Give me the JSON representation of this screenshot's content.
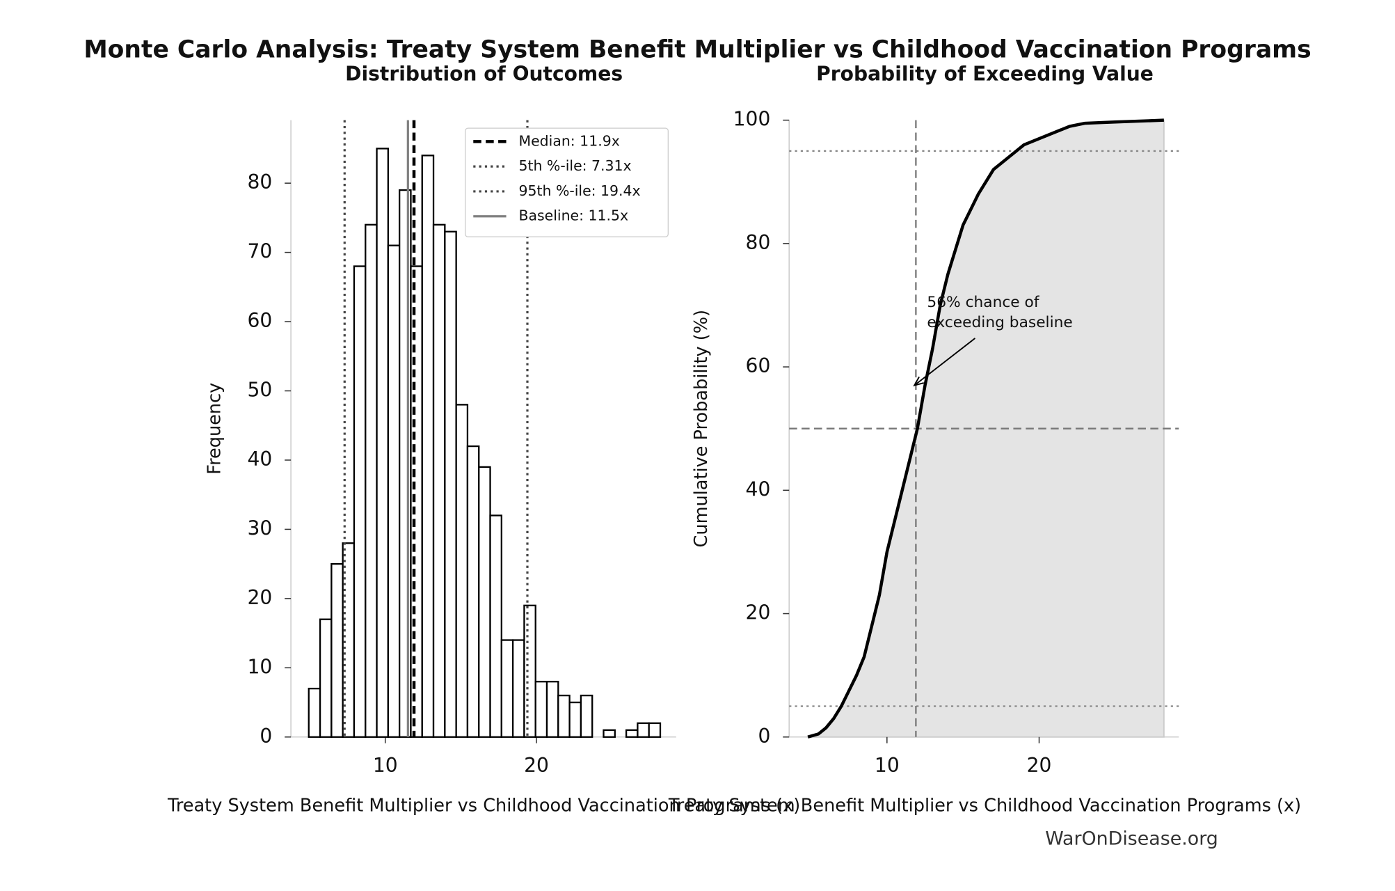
{
  "title": "Monte Carlo Analysis: Treaty System Benefit Multiplier vs Childhood Vaccination Programs",
  "watermark": "WarOnDisease.org",
  "chart_data": [
    {
      "type": "histogram",
      "title": "Distribution of Outcomes",
      "x_label": "Treaty System Benefit Multiplier vs Childhood Vaccination Programs (x)",
      "y_label": "Frequency",
      "bins": [
        4.94,
        5.69,
        6.44,
        7.19,
        7.94,
        8.69,
        9.44,
        10.19,
        10.94,
        11.69,
        12.44,
        13.19,
        13.94,
        14.69,
        15.44,
        16.19,
        16.94,
        17.69,
        18.44,
        19.19,
        19.94,
        20.69,
        21.44,
        22.19,
        22.94,
        23.69,
        24.44,
        25.19,
        25.94,
        26.69,
        27.44,
        28.19
      ],
      "values": [
        7,
        17,
        25,
        28,
        68,
        74,
        85,
        71,
        79,
        68,
        84,
        74,
        73,
        48,
        42,
        39,
        32,
        14,
        14,
        19,
        8,
        8,
        6,
        5,
        6,
        0,
        1,
        0,
        1,
        2,
        2
      ],
      "color": "#ffffff",
      "edge_color": "#000000",
      "xlim": [
        3.76,
        29.24
      ],
      "ylim": [
        0,
        89.1
      ],
      "xticks": [
        10,
        20
      ],
      "yticks": [
        0,
        10,
        20,
        30,
        40,
        50,
        60,
        70,
        80
      ],
      "vlines": [
        {
          "name": "Median: 11.9x",
          "value": 11.9,
          "style": "dashed",
          "color": "#000000",
          "width": 3.5
        },
        {
          "name": "5th %-ile: 7.31x",
          "value": 7.31,
          "style": "dotted",
          "color": "#444444",
          "width": 2.5
        },
        {
          "name": "95th %-ile: 19.4x",
          "value": 19.4,
          "style": "dotted",
          "color": "#444444",
          "width": 2.5
        },
        {
          "name": "Baseline: 11.5x",
          "value": 11.5,
          "style": "solid",
          "color": "#808080",
          "width": 2.5
        }
      ],
      "legend": "upper right"
    },
    {
      "type": "line",
      "title": "Probability of Exceeding Value",
      "x_label": "Treaty System Benefit Multiplier vs Childhood Vaccination Programs (x)",
      "y_label": "Cumulative Probability (%)",
      "x": [
        4.8,
        5.5,
        6,
        6.5,
        7,
        7.5,
        8,
        8.5,
        9,
        9.5,
        10,
        10.5,
        11,
        11.5,
        12,
        12.5,
        13,
        13.5,
        14,
        14.5,
        15,
        16,
        17,
        18,
        19,
        20,
        21,
        22,
        23,
        25,
        28.2
      ],
      "values": [
        0,
        0.5,
        1.5,
        3,
        5,
        7.5,
        10,
        13,
        18,
        23,
        30,
        35,
        40,
        45,
        50,
        57,
        63,
        70,
        75,
        79,
        83,
        88,
        92,
        94,
        96,
        97,
        98,
        99,
        99.5,
        99.7,
        100
      ],
      "color": "#000000",
      "fill": "#e4e4e4",
      "xlim": [
        3.57,
        29.18
      ],
      "ylim": [
        0,
        100
      ],
      "xticks": [
        10,
        20
      ],
      "yticks": [
        0,
        20,
        40,
        60,
        80,
        100
      ],
      "hlines": [
        {
          "value": 5,
          "style": "dotted",
          "color": "#888888"
        },
        {
          "value": 95,
          "style": "dotted",
          "color": "#888888"
        },
        {
          "value": 50,
          "style": "dashed",
          "color": "#777777"
        }
      ],
      "vlines": [
        {
          "value": 11.9,
          "style": "dashed",
          "color": "#777777"
        }
      ],
      "annotation": {
        "lines": [
          "56% chance of",
          "exceeding baseline"
        ],
        "x": 11.8,
        "y": 57
      }
    }
  ]
}
